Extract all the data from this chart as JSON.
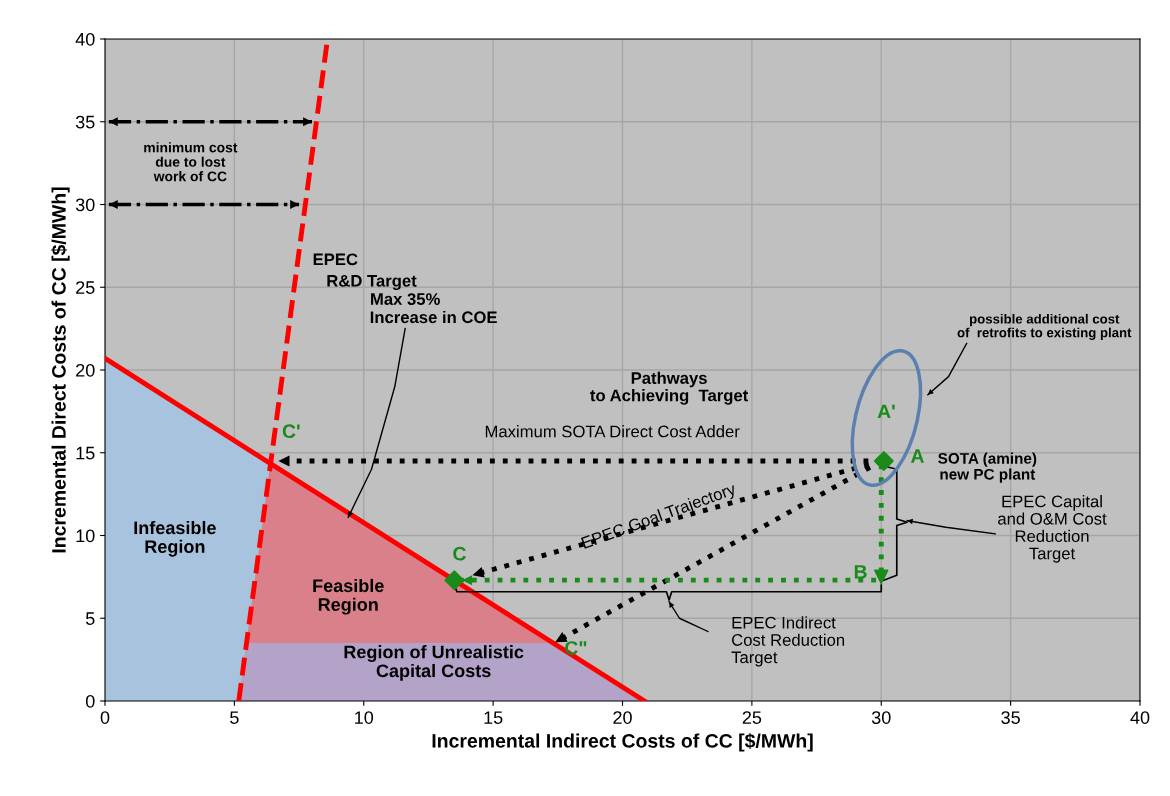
{
  "chart_data": {
    "type": "line",
    "xlabel": "Incremental Indirect Costs of CC [$/MWh]",
    "ylabel": "Incremental Direct Costs of CC [$/MWh]",
    "xlim": [
      0,
      40
    ],
    "ylim": [
      0,
      40
    ],
    "xticks": [
      0,
      5,
      10,
      15,
      20,
      25,
      30,
      35,
      40
    ],
    "yticks": [
      0,
      5,
      10,
      15,
      20,
      25,
      30,
      35,
      40
    ],
    "grid": true,
    "series": [
      {
        "type": "area",
        "color": "#a7c3dd",
        "x": [
          0,
          6.4
        ],
        "values": [
          20.7,
          14.5
        ]
      },
      {
        "type": "area",
        "color": "#d9808a",
        "x": [
          5.17,
          6.4,
          20.85
        ],
        "values": [
          0,
          14.5,
          0
        ]
      },
      {
        "type": "area",
        "color": "#b3a3c9",
        "x": [
          5.17,
          5.47,
          17.3,
          20.85
        ],
        "values": [
          0,
          3.5,
          3.5,
          0
        ]
      },
      {
        "color": "#ff0000",
        "line_style": "solid",
        "x": [
          0,
          20.85
        ],
        "values": [
          20.7,
          0
        ]
      },
      {
        "color": "#ff0000",
        "line_style": "dashed",
        "x": [
          5.17,
          8.6
        ],
        "values": [
          0,
          40
        ]
      },
      {
        "type": "scatter",
        "color": "#1a8a1a",
        "marker": "diamond",
        "x": [
          30.1,
          13.5
        ],
        "values": [
          14.5,
          7.3
        ]
      },
      {
        "type": "scatter",
        "color": "#1a8a1a",
        "marker": "triangle",
        "x": [
          30
        ],
        "values": [
          7.5
        ]
      }
    ],
    "annotations": [
      "minimum cost\ndue to lost\nwork of CC",
      "EPEC",
      "R&D Target",
      "Max 35%",
      {
        "text": "Increase in COE",
        "x": 9.4,
        "y": 11.1
      },
      "Pathways\nto Achieving  Target",
      "Maximum SOTA Direct Cost Adder",
      "EPEC Goal Trajectory",
      "SOTA (amine)\nnew PC plant",
      "possible additional cost\nof  retrofits to existing plant",
      "EPEC Capital\nand O&M Cost\nReduction\nTarget",
      "EPEC Indirect\nCost Reduction\nTarget",
      "Infeasible\nRegion",
      "Feasible\nRegion",
      "Region of Unrealistic\nCapital Costs",
      {
        "text": "C'",
        "x": 6.4,
        "y": 14.5
      },
      {
        "text": "C",
        "x": 13.5,
        "y": 7.3
      },
      {
        "text": "C\"",
        "x": 17.3,
        "y": 3.5
      },
      {
        "text": "A",
        "x": 30.1,
        "y": 14.5
      },
      {
        "text": "B",
        "x": 30,
        "y": 7.5
      },
      "A'"
    ]
  }
}
